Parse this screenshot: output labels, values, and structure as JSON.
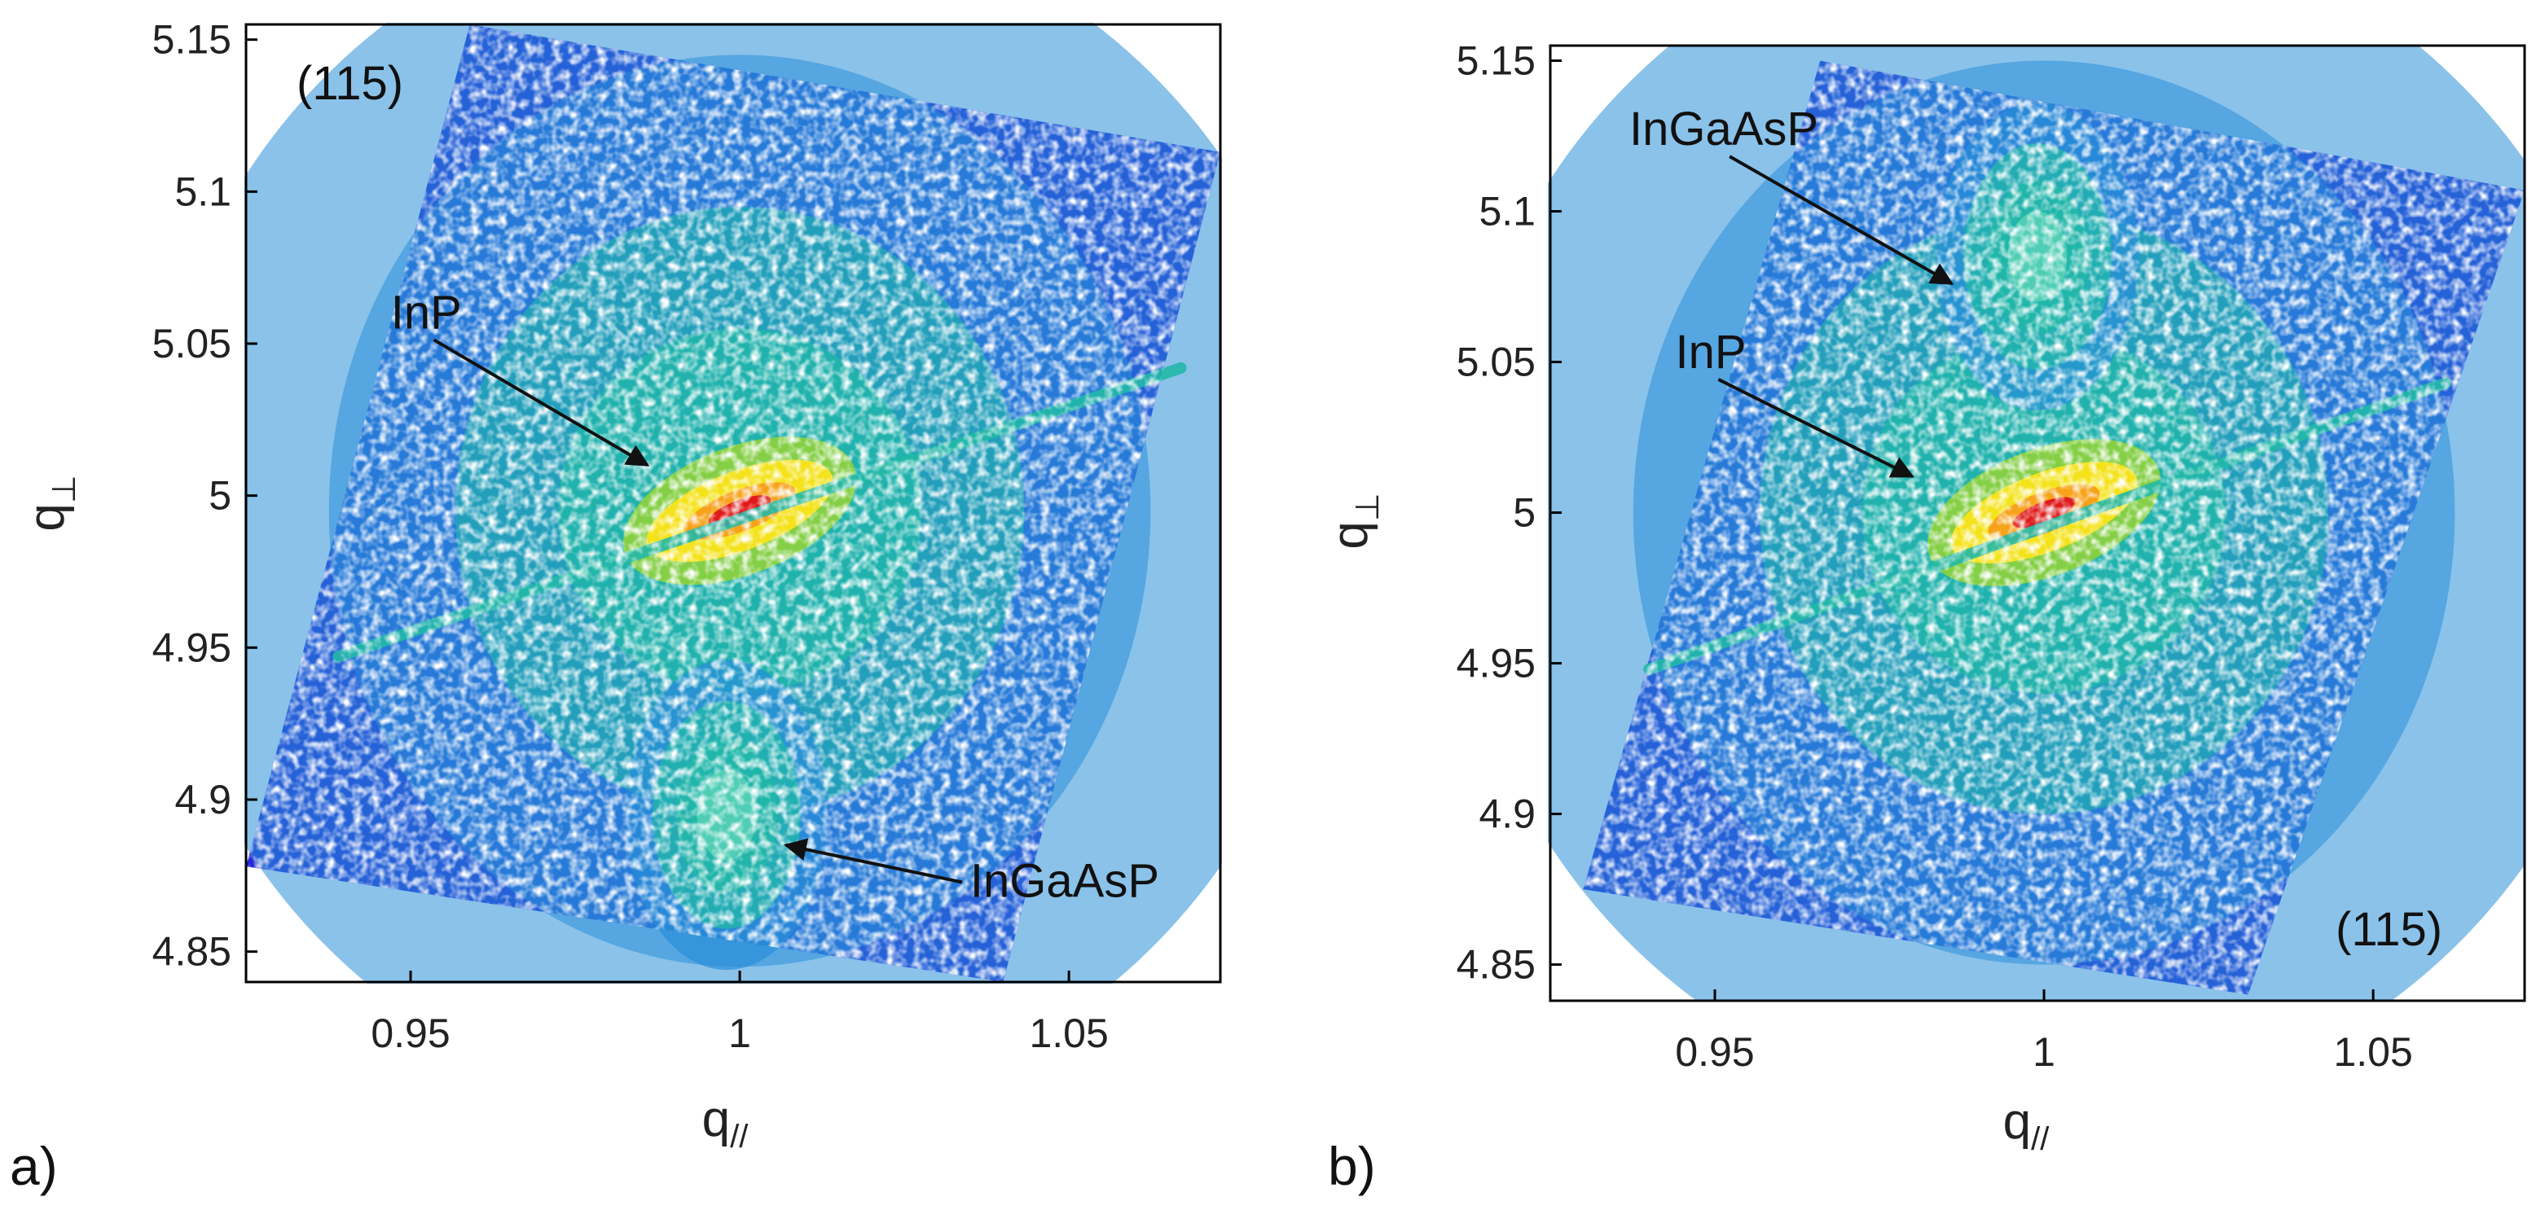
{
  "colors": {
    "low": "#1f28d6",
    "mid_low": "#2a8fd8",
    "mid": "#22b8a8",
    "mid_high": "#8fd23a",
    "high": "#f4e21a",
    "peak": "#e01a1a",
    "arrow": "#111111",
    "frame": "#000000"
  },
  "chart_data": [
    {
      "type": "heatmap",
      "panel_label": "a)",
      "reflection_label": "(115)",
      "xlabel": "q//",
      "ylabel": "q⊥",
      "xlim": [
        0.925,
        1.073
      ],
      "ylim": [
        4.84,
        5.155
      ],
      "xticks": [
        0.95,
        1.0,
        1.05
      ],
      "xtick_labels": [
        "0.95",
        "1",
        "1.05"
      ],
      "yticks": [
        4.85,
        4.9,
        4.95,
        5.0,
        5.05,
        5.1,
        5.15
      ],
      "ytick_labels": [
        "4.85",
        "4.9",
        "4.95",
        "5",
        "5.05",
        "5.1",
        "5.15"
      ],
      "grid": false,
      "reflection_label_position": "top-left",
      "scan_region": [
        [
          0.925,
          4.878
        ],
        [
          0.959,
          5.155
        ],
        [
          1.073,
          5.113
        ],
        [
          1.04,
          4.84
        ]
      ],
      "streak": {
        "from": [
          0.939,
          4.947
        ],
        "to": [
          1.067,
          5.042
        ]
      },
      "peaks": [
        {
          "name": "InP",
          "q_par": 1.0,
          "q_perp": 4.995,
          "width_par": 0.012,
          "width_perp": 0.005,
          "intensity": 1.0
        },
        {
          "name": "InGaAsP",
          "q_par": 0.998,
          "q_perp": 4.895,
          "width_par": 0.009,
          "width_perp": 0.03,
          "intensity": 0.45
        }
      ],
      "annotations": [
        {
          "text": "InP",
          "text_at": [
            0.947,
            5.055
          ],
          "arrow_to": [
            0.986,
            5.01
          ]
        },
        {
          "text": "InGaAsP",
          "text_at": [
            1.035,
            4.868
          ],
          "arrow_to": [
            1.007,
            4.885
          ]
        }
      ]
    },
    {
      "type": "heatmap",
      "panel_label": "b)",
      "reflection_label": "(115)",
      "xlabel": "q//",
      "ylabel": "q⊥",
      "xlim": [
        0.925,
        1.073
      ],
      "ylim": [
        4.838,
        5.155
      ],
      "xticks": [
        0.95,
        1.0,
        1.05
      ],
      "xtick_labels": [
        "0.95",
        "1",
        "1.05"
      ],
      "yticks": [
        4.85,
        4.9,
        4.95,
        5.0,
        5.05,
        5.1,
        5.15
      ],
      "ytick_labels": [
        "4.85",
        "4.9",
        "4.95",
        "5",
        "5.05",
        "5.1",
        "5.15"
      ],
      "grid": false,
      "reflection_label_position": "bottom-right",
      "scan_region": [
        [
          0.93,
          4.875
        ],
        [
          0.966,
          5.15
        ],
        [
          1.073,
          5.107
        ],
        [
          1.031,
          4.84
        ]
      ],
      "streak": {
        "from": [
          0.94,
          4.948
        ],
        "to": [
          1.061,
          5.043
        ]
      },
      "peaks": [
        {
          "name": "InP",
          "q_par": 1.0,
          "q_perp": 5.0,
          "width_par": 0.012,
          "width_perp": 0.005,
          "intensity": 1.0
        },
        {
          "name": "InGaAsP",
          "q_par": 0.999,
          "q_perp": 5.085,
          "width_par": 0.009,
          "width_perp": 0.03,
          "intensity": 0.45
        }
      ],
      "annotations": [
        {
          "text": "InGaAsP",
          "text_at": [
            0.937,
            5.122
          ],
          "arrow_to": [
            0.986,
            5.076
          ]
        },
        {
          "text": "InP",
          "text_at": [
            0.944,
            5.048
          ],
          "arrow_to": [
            0.98,
            5.012
          ]
        }
      ]
    }
  ]
}
